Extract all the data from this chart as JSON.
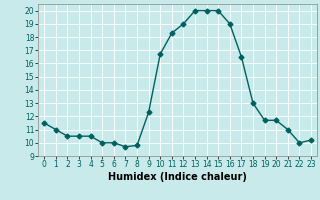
{
  "x": [
    0,
    1,
    2,
    3,
    4,
    5,
    6,
    7,
    8,
    9,
    10,
    11,
    12,
    13,
    14,
    15,
    16,
    17,
    18,
    19,
    20,
    21,
    22,
    23
  ],
  "y": [
    11.5,
    11.0,
    10.5,
    10.5,
    10.5,
    10.0,
    10.0,
    9.7,
    9.8,
    12.3,
    16.7,
    18.3,
    19.0,
    20.0,
    20.0,
    20.0,
    19.0,
    16.5,
    13.0,
    11.7,
    11.7,
    11.0,
    10.0,
    10.2
  ],
  "line_color": "#006060",
  "marker": "D",
  "marker_size": 2.5,
  "line_width": 1.0,
  "xlabel": "Humidex (Indice chaleur)",
  "xlim": [
    -0.5,
    23.5
  ],
  "ylim": [
    9,
    20.5
  ],
  "yticks": [
    9,
    10,
    11,
    12,
    13,
    14,
    15,
    16,
    17,
    18,
    19,
    20
  ],
  "xticks": [
    0,
    1,
    2,
    3,
    4,
    5,
    6,
    7,
    8,
    9,
    10,
    11,
    12,
    13,
    14,
    15,
    16,
    17,
    18,
    19,
    20,
    21,
    22,
    23
  ],
  "bg_color": "#c8eaea",
  "grid_color": "#ffffff",
  "xlabel_fontsize": 7,
  "tick_fontsize": 5.5
}
